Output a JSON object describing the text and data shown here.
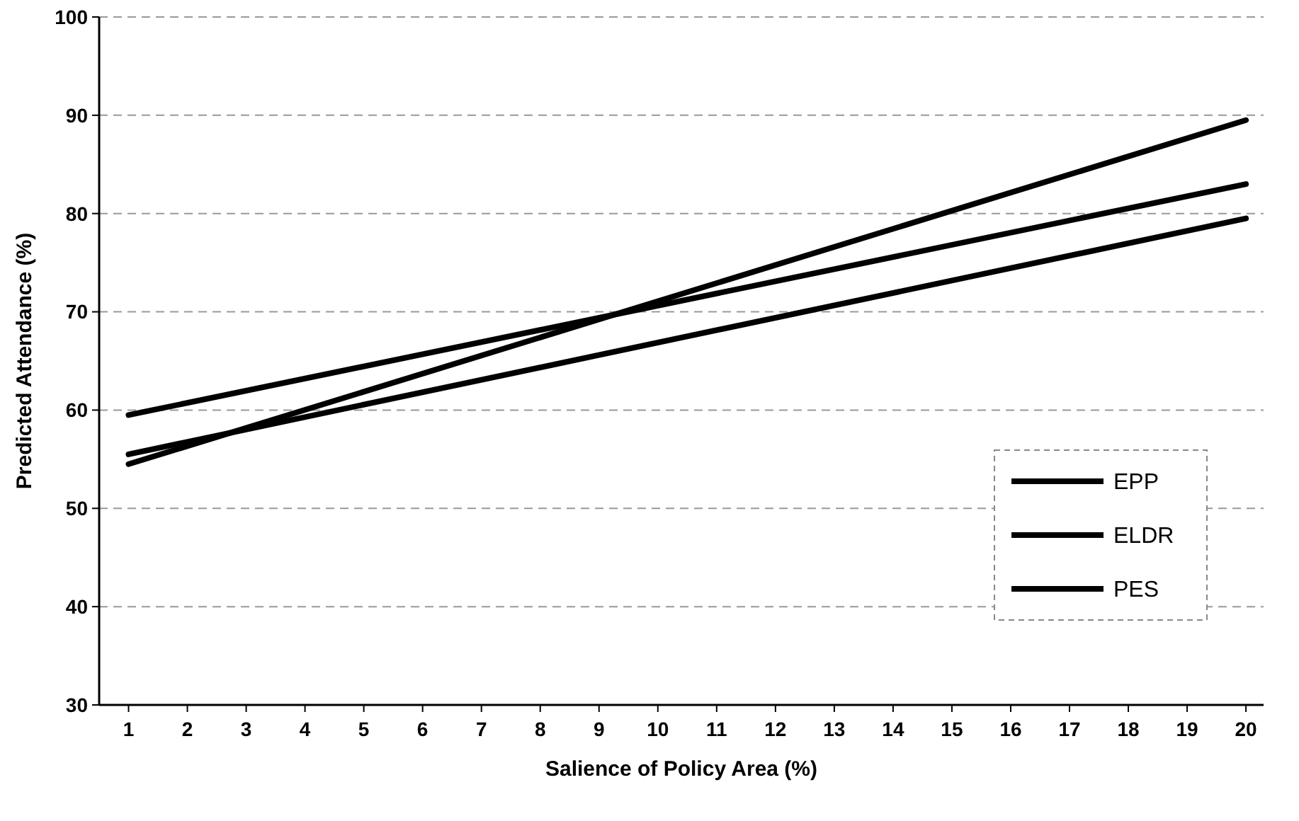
{
  "chart_data": {
    "type": "line",
    "xlabel": "Salience of Policy Area (%)",
    "ylabel": "Predicted Attendance (%)",
    "xlim": [
      0.5,
      20.3
    ],
    "xticks": [
      1,
      2,
      3,
      4,
      5,
      6,
      7,
      8,
      9,
      10,
      11,
      12,
      13,
      14,
      15,
      16,
      17,
      18,
      19,
      20
    ],
    "x": [
      1,
      20
    ],
    "ylim": [
      30,
      100
    ],
    "yticks": [
      30,
      40,
      50,
      60,
      70,
      80,
      90,
      100
    ],
    "grid": "y",
    "legend": "right",
    "marker": "none",
    "line_style": "solid",
    "series": [
      {
        "name": "EPP",
        "color": "#000000",
        "values": [
          54.5,
          89.5
        ]
      },
      {
        "name": "ELDR",
        "color": "#000000",
        "values": [
          59.5,
          83
        ]
      },
      {
        "name": "PES",
        "color": "#000000",
        "values": [
          55.5,
          79.5
        ]
      }
    ]
  }
}
